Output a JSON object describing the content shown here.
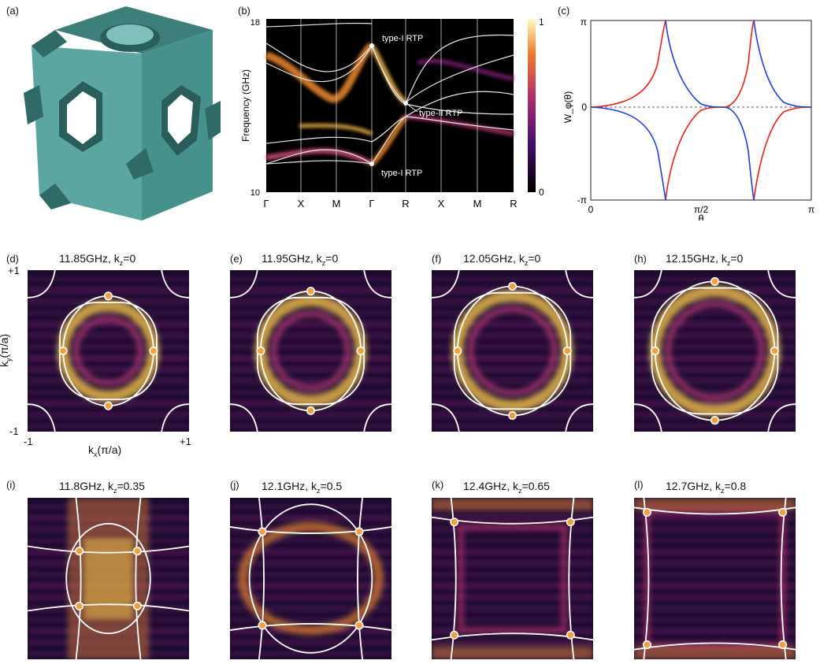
{
  "panels": {
    "a": {
      "label": "(a)"
    },
    "b": {
      "label": "(b)",
      "ylabel": "Frequency (GHz)",
      "y_top": "18",
      "y_bottom": "10",
      "k_ticks": [
        "Γ",
        "X",
        "M",
        "Γ",
        "R",
        "X",
        "M",
        "R"
      ],
      "annotations": [
        "type-I RTP",
        "type-II RTP",
        "type-I RTP"
      ],
      "colorbar_max": "1",
      "colorbar_min": "0"
    },
    "c": {
      "label": "(c)",
      "ylabel": "W_φ(θ)",
      "xlabel": "θ",
      "y_ticks": [
        "π",
        "0",
        "-π"
      ],
      "x_ticks": [
        "0",
        "π/2",
        "π"
      ]
    }
  },
  "maps": [
    {
      "label": "(d)",
      "freq": "11.85GHz, k",
      "sub": "z",
      "kz": "=0"
    },
    {
      "label": "(e)",
      "freq": "11.95GHz, k",
      "sub": "z",
      "kz": "=0"
    },
    {
      "label": "(f)",
      "freq": "12.05GHz, k",
      "sub": "z",
      "kz": "=0"
    },
    {
      "label": "(h)",
      "freq": "12.15GHz, k",
      "sub": "z",
      "kz": "=0"
    },
    {
      "label": "(i)",
      "freq": "11.8GHz, k",
      "sub": "z",
      "kz": "=0.35"
    },
    {
      "label": "(j)",
      "freq": "12.1GHz, k",
      "sub": "z",
      "kz": "=0.5"
    },
    {
      "label": "(k)",
      "freq": "12.4GHz, k",
      "sub": "z",
      "kz": "=0.65"
    },
    {
      "label": "(l)",
      "freq": "12.7GHz, k",
      "sub": "z",
      "kz": "=0.8"
    }
  ],
  "map_axes": {
    "ky": "k",
    "ky_sub": "y",
    "ky_unit": "(π/a)",
    "kx": "k",
    "kx_sub": "x",
    "kx_unit": "(π/a)",
    "plus": "+1",
    "minus": "-1"
  },
  "colors": {
    "hot": "#f5c64a",
    "dark": "#1a0b2e",
    "mid": "#7a1f6e",
    "red": "#e8201a",
    "blue": "#1f3ce0",
    "teal": "#5aa5a0"
  }
}
